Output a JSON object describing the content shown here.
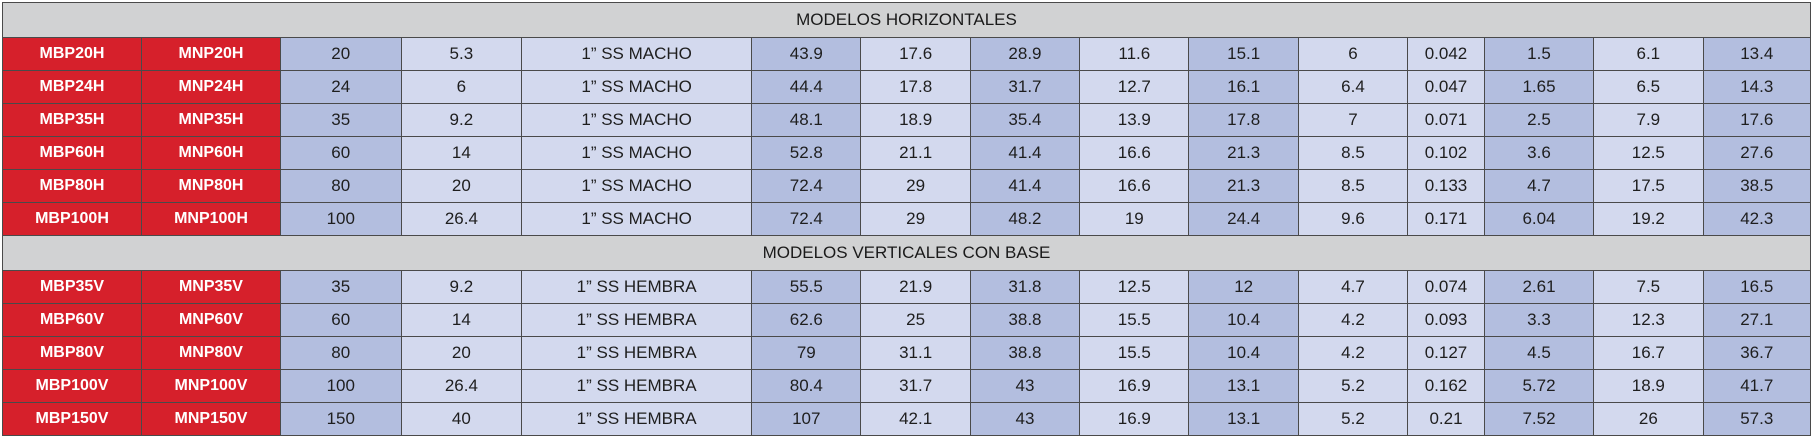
{
  "sections": [
    {
      "title": "MODELOS HORIZONTALES",
      "rows": [
        [
          "MBP20H",
          "MNP20H",
          "20",
          "5.3",
          "1” SS MACHO",
          "43.9",
          "17.6",
          "28.9",
          "11.6",
          "15.1",
          "6",
          "0.042",
          "1.5",
          "6.1",
          "13.4"
        ],
        [
          "MBP24H",
          "MNP24H",
          "24",
          "6",
          "1” SS MACHO",
          "44.4",
          "17.8",
          "31.7",
          "12.7",
          "16.1",
          "6.4",
          "0.047",
          "1.65",
          "6.5",
          "14.3"
        ],
        [
          "MBP35H",
          "MNP35H",
          "35",
          "9.2",
          "1” SS MACHO",
          "48.1",
          "18.9",
          "35.4",
          "13.9",
          "17.8",
          "7",
          "0.071",
          "2.5",
          "7.9",
          "17.6"
        ],
        [
          "MBP60H",
          "MNP60H",
          "60",
          "14",
          "1” SS MACHO",
          "52.8",
          "21.1",
          "41.4",
          "16.6",
          "21.3",
          "8.5",
          "0.102",
          "3.6",
          "12.5",
          "27.6"
        ],
        [
          "MBP80H",
          "MNP80H",
          "80",
          "20",
          "1” SS MACHO",
          "72.4",
          "29",
          "41.4",
          "16.6",
          "21.3",
          "8.5",
          "0.133",
          "4.7",
          "17.5",
          "38.5"
        ],
        [
          "MBP100H",
          "MNP100H",
          "100",
          "26.4",
          "1” SS MACHO",
          "72.4",
          "29",
          "48.2",
          "19",
          "24.4",
          "9.6",
          "0.171",
          "6.04",
          "19.2",
          "42.3"
        ]
      ]
    },
    {
      "title": "MODELOS VERTICALES CON BASE",
      "rows": [
        [
          "MBP35V",
          "MNP35V",
          "35",
          "9.2",
          "1” SS HEMBRA",
          "55.5",
          "21.9",
          "31.8",
          "12.5",
          "12",
          "4.7",
          "0.074",
          "2.61",
          "7.5",
          "16.5"
        ],
        [
          "MBP60V",
          "MNP60V",
          "60",
          "14",
          "1” SS HEMBRA",
          "62.6",
          "25",
          "38.8",
          "15.5",
          "10.4",
          "4.2",
          "0.093",
          "3.3",
          "12.3",
          "27.1"
        ],
        [
          "MBP80V",
          "MNP80V",
          "80",
          "20",
          "1” SS HEMBRA",
          "79",
          "31.1",
          "38.8",
          "15.5",
          "10.4",
          "4.2",
          "0.127",
          "4.5",
          "16.7",
          "36.7"
        ],
        [
          "MBP100V",
          "MNP100V",
          "100",
          "26.4",
          "1” SS HEMBRA",
          "80.4",
          "31.7",
          "43",
          "16.9",
          "13.1",
          "5.2",
          "0.162",
          "5.72",
          "18.9",
          "41.7"
        ],
        [
          "MBP150V",
          "MNP150V",
          "150",
          "40",
          "1” SS HEMBRA",
          "107",
          "42.1",
          "43",
          "16.9",
          "13.1",
          "5.2",
          "0.21",
          "7.52",
          "26",
          "57.3"
        ]
      ]
    }
  ],
  "colors": {
    "model_cell": "#d6202b",
    "value_dark": "#b3bedf",
    "value_light": "#d3d9ee",
    "section_header": "#d1d2d3"
  }
}
